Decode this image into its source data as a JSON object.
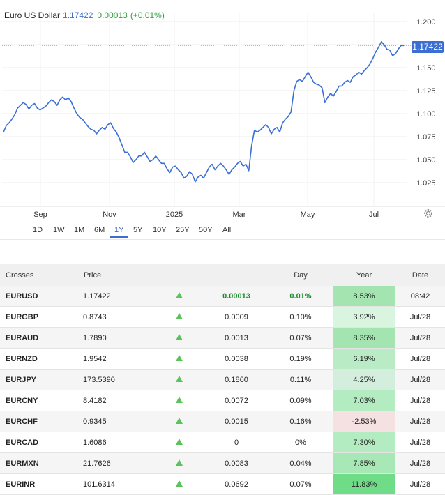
{
  "header": {
    "title": "Euro US Dollar",
    "price": "1.17422",
    "change": "0.00013",
    "change_pct": "(+0.01%)"
  },
  "chart_data": {
    "type": "line",
    "ylim": [
      1.0,
      1.21
    ],
    "y_ticks": [
      "1.200",
      "1.175",
      "1.150",
      "1.125",
      "1.100",
      "1.075",
      "1.050",
      "1.025"
    ],
    "x_ticks": [
      "Sep",
      "Nov",
      "2025",
      "Mar",
      "May",
      "Jul"
    ],
    "last_value": "1.17422",
    "series": [
      {
        "color": "#3b6fd4",
        "values": [
          1.08,
          1.087,
          1.09,
          1.094,
          1.099,
          1.106,
          1.109,
          1.112,
          1.11,
          1.105,
          1.109,
          1.111,
          1.106,
          1.104,
          1.106,
          1.108,
          1.112,
          1.115,
          1.113,
          1.109,
          1.115,
          1.118,
          1.115,
          1.117,
          1.113,
          1.106,
          1.1,
          1.096,
          1.094,
          1.09,
          1.086,
          1.083,
          1.082,
          1.078,
          1.082,
          1.085,
          1.083,
          1.088,
          1.09,
          1.084,
          1.08,
          1.074,
          1.066,
          1.058,
          1.058,
          1.053,
          1.047,
          1.05,
          1.054,
          1.054,
          1.058,
          1.053,
          1.048,
          1.05,
          1.054,
          1.05,
          1.046,
          1.046,
          1.04,
          1.036,
          1.042,
          1.043,
          1.039,
          1.036,
          1.03,
          1.032,
          1.037,
          1.034,
          1.026,
          1.031,
          1.033,
          1.03,
          1.036,
          1.042,
          1.045,
          1.039,
          1.043,
          1.046,
          1.043,
          1.039,
          1.034,
          1.039,
          1.042,
          1.046,
          1.048,
          1.043,
          1.045,
          1.038,
          1.065,
          1.082,
          1.08,
          1.082,
          1.085,
          1.088,
          1.085,
          1.078,
          1.083,
          1.085,
          1.08,
          1.09,
          1.094,
          1.097,
          1.102,
          1.125,
          1.135,
          1.137,
          1.135,
          1.14,
          1.145,
          1.14,
          1.134,
          1.132,
          1.131,
          1.128,
          1.112,
          1.118,
          1.122,
          1.119,
          1.124,
          1.13,
          1.13,
          1.134,
          1.136,
          1.134,
          1.14,
          1.142,
          1.145,
          1.143,
          1.147,
          1.15,
          1.154,
          1.16,
          1.167,
          1.172,
          1.178,
          1.175,
          1.17,
          1.169,
          1.163,
          1.165,
          1.17,
          1.174,
          1.174
        ]
      }
    ]
  },
  "ranges": [
    "1D",
    "1W",
    "1M",
    "6M",
    "1Y",
    "5Y",
    "10Y",
    "25Y",
    "50Y",
    "All"
  ],
  "active_range": "1Y",
  "table": {
    "headers": [
      "Crosses",
      "Price",
      "",
      "Day",
      "Year",
      "Date"
    ],
    "rows": [
      {
        "name": "EURUSD",
        "price": "1.17422",
        "change": "0.00013",
        "pct": "0.01%",
        "year": "8.53%",
        "date": "08:42",
        "year_color": "#a3e4b0"
      },
      {
        "name": "EURGBP",
        "price": "0.8743",
        "change": "0.0009",
        "pct": "0.10%",
        "year": "3.92%",
        "date": "Jul/28",
        "year_color": "#d9f5e0"
      },
      {
        "name": "EURAUD",
        "price": "1.7890",
        "change": "0.0013",
        "pct": "0.07%",
        "year": "8.35%",
        "date": "Jul/28",
        "year_color": "#a3e4b0"
      },
      {
        "name": "EURNZD",
        "price": "1.9542",
        "change": "0.0038",
        "pct": "0.19%",
        "year": "6.19%",
        "date": "Jul/28",
        "year_color": "#b9ecc5"
      },
      {
        "name": "EURJPY",
        "price": "173.5390",
        "change": "0.1860",
        "pct": "0.11%",
        "year": "4.25%",
        "date": "Jul/28",
        "year_color": "#d3eedc"
      },
      {
        "name": "EURCNY",
        "price": "8.4182",
        "change": "0.0072",
        "pct": "0.09%",
        "year": "7.03%",
        "date": "Jul/28",
        "year_color": "#b2ecc0"
      },
      {
        "name": "EURCHF",
        "price": "0.9345",
        "change": "0.0015",
        "pct": "0.16%",
        "year": "-2.53%",
        "date": "Jul/28",
        "year_color": "#f5e0e2"
      },
      {
        "name": "EURCAD",
        "price": "1.6086",
        "change": "0",
        "pct": "0%",
        "year": "7.30%",
        "date": "Jul/28",
        "year_color": "#b2ecc0"
      },
      {
        "name": "EURMXN",
        "price": "21.7626",
        "change": "0.0083",
        "pct": "0.04%",
        "year": "7.85%",
        "date": "Jul/28",
        "year_color": "#a8e8b7"
      },
      {
        "name": "EURINR",
        "price": "101.6314",
        "change": "0.0692",
        "pct": "0.07%",
        "year": "11.83%",
        "date": "Jul/28",
        "year_color": "#6fdc88"
      }
    ]
  }
}
